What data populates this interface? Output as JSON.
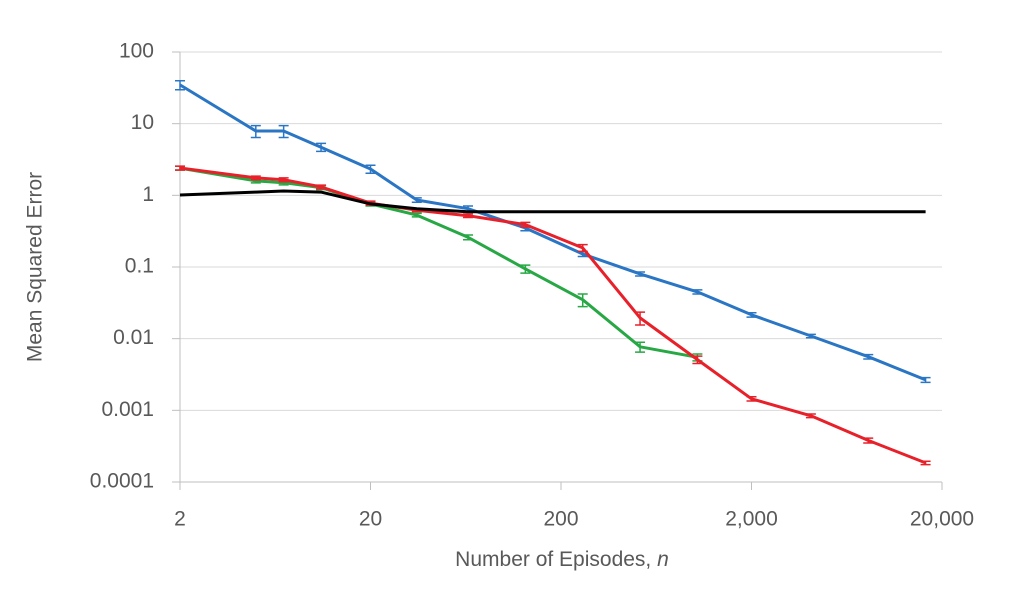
{
  "chart_data": {
    "type": "line",
    "ylabel": "Mean Squared Error",
    "xlabel": "Number of Episodes,",
    "xlabel_italic": "n",
    "x": [
      2,
      5,
      7,
      11,
      20,
      35,
      65,
      130,
      260,
      520,
      1040,
      2000,
      4100,
      8200,
      16400
    ],
    "series": [
      {
        "name": "blue",
        "color": "#2a76c4",
        "values": [
          34.7,
          7.9,
          7.9,
          4.7,
          2.33,
          0.86,
          0.65,
          0.35,
          0.152,
          0.08,
          0.045,
          0.0215,
          0.0109,
          0.0056,
          0.00266
        ],
        "errors": [
          5,
          1.5,
          1.5,
          0.6,
          0.3,
          0.06,
          0.06,
          0.03,
          0.012,
          0.005,
          0.003,
          0.0015,
          0.0006,
          0.0004,
          0.0002
        ]
      },
      {
        "name": "green",
        "color": "#27a844",
        "values": [
          2.4,
          1.59,
          1.5,
          1.28,
          0.76,
          0.53,
          0.26,
          0.094,
          0.035,
          0.0077,
          0.0055,
          null,
          null,
          null,
          null
        ],
        "errors": [
          0.15,
          0.1,
          0.1,
          0.08,
          0.05,
          0.03,
          0.02,
          0.012,
          0.007,
          0.0012,
          0.0006,
          null,
          null,
          null,
          null
        ]
      },
      {
        "name": "red",
        "color": "#e8202a",
        "values": [
          2.41,
          1.75,
          1.65,
          1.31,
          0.78,
          0.62,
          0.52,
          0.39,
          0.185,
          0.0195,
          0.0051,
          0.00145,
          0.00084,
          0.00038,
          0.000185
        ],
        "errors": [
          0.15,
          0.1,
          0.1,
          0.08,
          0.05,
          0.03,
          0.03,
          0.03,
          0.02,
          0.004,
          0.0006,
          0.0001,
          5e-05,
          3e-05,
          1e-05
        ]
      },
      {
        "name": "black",
        "color": "#000000",
        "values": [
          1.01,
          1.11,
          1.15,
          1.11,
          0.76,
          0.65,
          0.59,
          0.59,
          0.59,
          0.59,
          0.59,
          0.59,
          0.59,
          0.59,
          0.59
        ]
      }
    ],
    "xlim": [
      2,
      20000
    ],
    "xticks": [
      2,
      20,
      200,
      {
        "value": 2000,
        "label": "2,000"
      },
      {
        "value": 20000,
        "label": "20,000"
      }
    ],
    "ylim": [
      0.0001,
      100
    ],
    "yticks": [
      0.0001,
      0.001,
      0.01,
      0.1,
      1,
      10,
      100
    ],
    "xscale": "log",
    "yscale": "log",
    "grid": true
  }
}
